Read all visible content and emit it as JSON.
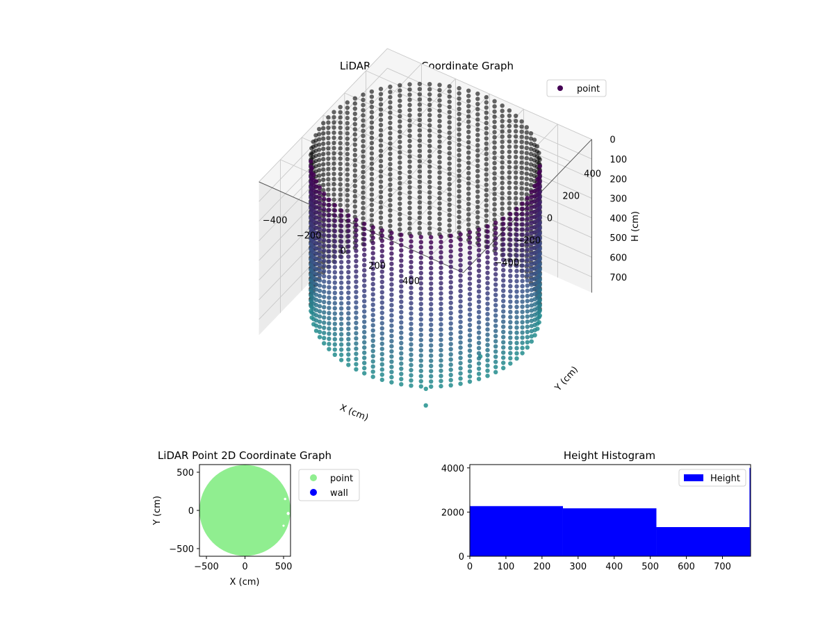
{
  "chart_data": [
    {
      "type": "scatter3d",
      "title": "LiDAR Point 3D Coordinate Graph",
      "xlabel": "X (cm)",
      "ylabel": "Y (cm)",
      "zlabel": "H (cm)",
      "xticks": [
        -400,
        -200,
        0,
        200,
        400
      ],
      "yticks": [
        -400,
        -200,
        0,
        200,
        400
      ],
      "zticks": [
        0,
        100,
        200,
        300,
        400,
        500,
        600,
        700
      ],
      "xlim": [
        -600,
        600
      ],
      "ylim": [
        -600,
        600
      ],
      "zlim": [
        0,
        780
      ],
      "z_inverted": true,
      "legend": {
        "entries": [
          "point"
        ],
        "position": "top-right"
      },
      "colors": {
        "point": "#440154",
        "low": "#3b528b",
        "mid": "#21908d",
        "far": "#5ec962"
      },
      "shape": {
        "type": "cylinder-wall",
        "radius": 570,
        "height_max": 760,
        "columns": 72,
        "rows": 30
      },
      "outliers": [
        {
          "x": 480,
          "y": -250,
          "z": 670
        },
        {
          "x": 330,
          "y": -520,
          "z": 740
        },
        {
          "x": 380,
          "y": -600,
          "z": 760
        }
      ]
    },
    {
      "type": "scatter",
      "title": "LiDAR Point 2D Coordinate Graph",
      "xlabel": "X (cm)",
      "ylabel": "Y (cm)",
      "xticks": [
        -500,
        0,
        500
      ],
      "yticks": [
        500,
        0,
        -500
      ],
      "xlim": [
        -590,
        590
      ],
      "ylim": [
        -600,
        600
      ],
      "series": [
        {
          "name": "point",
          "color": "#90ee90",
          "shape": "disk",
          "center": [
            0,
            0
          ],
          "radius": 590
        },
        {
          "name": "wall",
          "color": "#0000ff",
          "points": []
        }
      ],
      "legend": {
        "entries": [
          "point",
          "wall"
        ],
        "position": "outside-right"
      }
    },
    {
      "type": "histogram",
      "title": "Height Histogram",
      "xticks": [
        0,
        100,
        200,
        300,
        400,
        500,
        600,
        700
      ],
      "yticks": [
        0,
        2000,
        4000
      ],
      "xlim": [
        0,
        778
      ],
      "ylim": [
        0,
        4150
      ],
      "bins": [
        {
          "x0": 0,
          "x1": 258,
          "count": 2270
        },
        {
          "x0": 258,
          "x1": 517,
          "count": 2170
        },
        {
          "x0": 517,
          "x1": 775,
          "count": 1320
        },
        {
          "x0": 775,
          "x1": 778,
          "count": 4000
        }
      ],
      "color": "#0000ff",
      "legend": {
        "entries": [
          "Height"
        ],
        "position": "top-right"
      }
    }
  ]
}
